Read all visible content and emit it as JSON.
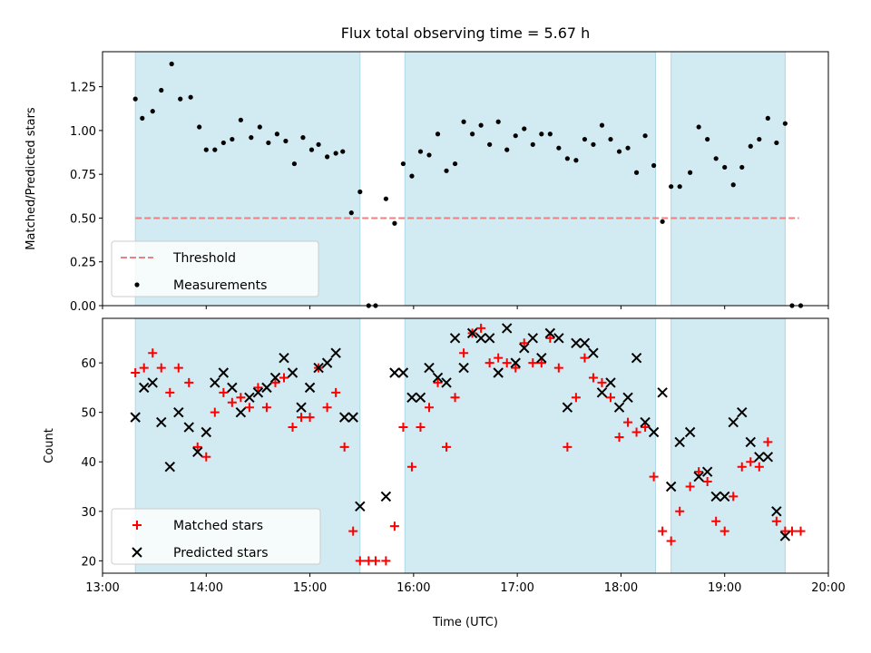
{
  "figure": {
    "title": "Flux total observing time = 5.67 h"
  },
  "colors": {
    "shade": "#add8e6",
    "threshold": "#f08080",
    "measurement": "#000000",
    "matched": "#ff0000",
    "predicted": "#000000"
  },
  "chart_data": [
    {
      "type": "scatter",
      "ylabel": "Matched/Predicted stars",
      "ylim": [
        0,
        1.45
      ],
      "xlim": [
        "13:00",
        "20:00"
      ],
      "yticks": [
        "0.00",
        "0.25",
        "0.50",
        "0.75",
        "1.00",
        "1.25"
      ],
      "grid": false,
      "legend_position": "lower left",
      "shaded_intervals": [
        [
          "13:19",
          "15:29"
        ],
        [
          "15:55",
          "18:20"
        ],
        [
          "18:29",
          "19:35"
        ]
      ],
      "series": [
        {
          "name": "Threshold",
          "style": "dashed-line",
          "x": [
            "13:19",
            "19:43"
          ],
          "y": [
            0.5,
            0.5
          ]
        },
        {
          "name": "Measurements",
          "style": "dot",
          "points": [
            [
              "13:19",
              1.18
            ],
            [
              "13:23",
              1.07
            ],
            [
              "13:29",
              1.11
            ],
            [
              "13:34",
              1.23
            ],
            [
              "13:40",
              1.38
            ],
            [
              "13:45",
              1.18
            ],
            [
              "13:51",
              1.19
            ],
            [
              "13:56",
              1.02
            ],
            [
              "14:00",
              0.89
            ],
            [
              "14:05",
              0.89
            ],
            [
              "14:10",
              0.93
            ],
            [
              "14:15",
              0.95
            ],
            [
              "14:20",
              1.06
            ],
            [
              "14:26",
              0.96
            ],
            [
              "14:31",
              1.02
            ],
            [
              "14:36",
              0.93
            ],
            [
              "14:41",
              0.98
            ],
            [
              "14:46",
              0.94
            ],
            [
              "14:51",
              0.81
            ],
            [
              "14:56",
              0.96
            ],
            [
              "15:01",
              0.89
            ],
            [
              "15:05",
              0.92
            ],
            [
              "15:10",
              0.85
            ],
            [
              "15:15",
              0.87
            ],
            [
              "15:19",
              0.88
            ],
            [
              "15:24",
              0.53
            ],
            [
              "15:29",
              0.65
            ],
            [
              "15:34",
              0.0
            ],
            [
              "15:38",
              0.0
            ],
            [
              "15:44",
              0.61
            ],
            [
              "15:49",
              0.47
            ],
            [
              "15:54",
              0.81
            ],
            [
              "15:59",
              0.74
            ],
            [
              "16:04",
              0.88
            ],
            [
              "16:09",
              0.86
            ],
            [
              "16:14",
              0.98
            ],
            [
              "16:19",
              0.77
            ],
            [
              "16:24",
              0.81
            ],
            [
              "16:29",
              1.05
            ],
            [
              "16:34",
              0.98
            ],
            [
              "16:39",
              1.03
            ],
            [
              "16:44",
              0.92
            ],
            [
              "16:49",
              1.05
            ],
            [
              "16:54",
              0.89
            ],
            [
              "16:59",
              0.97
            ],
            [
              "17:04",
              1.01
            ],
            [
              "17:09",
              0.92
            ],
            [
              "17:14",
              0.98
            ],
            [
              "17:19",
              0.98
            ],
            [
              "17:24",
              0.9
            ],
            [
              "17:29",
              0.84
            ],
            [
              "17:34",
              0.83
            ],
            [
              "17:39",
              0.95
            ],
            [
              "17:44",
              0.92
            ],
            [
              "17:49",
              1.03
            ],
            [
              "17:54",
              0.95
            ],
            [
              "17:59",
              0.88
            ],
            [
              "18:04",
              0.9
            ],
            [
              "18:09",
              0.76
            ],
            [
              "18:14",
              0.97
            ],
            [
              "18:19",
              0.8
            ],
            [
              "18:24",
              0.48
            ],
            [
              "18:29",
              0.68
            ],
            [
              "18:34",
              0.68
            ],
            [
              "18:40",
              0.76
            ],
            [
              "18:45",
              1.02
            ],
            [
              "18:50",
              0.95
            ],
            [
              "18:55",
              0.84
            ],
            [
              "19:00",
              0.79
            ],
            [
              "19:05",
              0.69
            ],
            [
              "19:10",
              0.79
            ],
            [
              "19:15",
              0.91
            ],
            [
              "19:20",
              0.95
            ],
            [
              "19:25",
              1.07
            ],
            [
              "19:30",
              0.93
            ],
            [
              "19:35",
              1.04
            ],
            [
              "19:39",
              0.0
            ],
            [
              "19:44",
              0.0
            ]
          ]
        }
      ]
    },
    {
      "type": "scatter",
      "ylabel": "Count",
      "xlabel": "Time (UTC)",
      "ylim": [
        17.5,
        69
      ],
      "xlim": [
        "13:00",
        "20:00"
      ],
      "yticks": [
        "20",
        "30",
        "40",
        "50",
        "60"
      ],
      "xticks": [
        "13:00",
        "14:00",
        "15:00",
        "16:00",
        "17:00",
        "18:00",
        "19:00",
        "20:00"
      ],
      "grid": false,
      "legend_position": "lower left",
      "shaded_intervals": [
        [
          "13:19",
          "15:29"
        ],
        [
          "15:55",
          "18:20"
        ],
        [
          "18:29",
          "19:35"
        ]
      ],
      "series": [
        {
          "name": "Matched stars",
          "marker": "+",
          "points": [
            [
              "13:19",
              58
            ],
            [
              "13:24",
              59
            ],
            [
              "13:29",
              62
            ],
            [
              "13:34",
              59
            ],
            [
              "13:39",
              54
            ],
            [
              "13:44",
              59
            ],
            [
              "13:50",
              56
            ],
            [
              "13:55",
              43
            ],
            [
              "14:00",
              41
            ],
            [
              "14:05",
              50
            ],
            [
              "14:10",
              54
            ],
            [
              "14:15",
              52
            ],
            [
              "14:20",
              53
            ],
            [
              "14:25",
              51
            ],
            [
              "14:30",
              55
            ],
            [
              "14:35",
              51
            ],
            [
              "14:40",
              56
            ],
            [
              "14:45",
              57
            ],
            [
              "14:50",
              47
            ],
            [
              "14:55",
              49
            ],
            [
              "15:00",
              49
            ],
            [
              "15:05",
              59
            ],
            [
              "15:10",
              51
            ],
            [
              "15:15",
              54
            ],
            [
              "15:20",
              43
            ],
            [
              "15:25",
              26
            ],
            [
              "15:29",
              20
            ],
            [
              "15:34",
              20
            ],
            [
              "15:38",
              20
            ],
            [
              "15:44",
              20
            ],
            [
              "15:49",
              27
            ],
            [
              "15:54",
              47
            ],
            [
              "15:59",
              39
            ],
            [
              "16:04",
              47
            ],
            [
              "16:09",
              51
            ],
            [
              "16:14",
              56
            ],
            [
              "16:19",
              43
            ],
            [
              "16:24",
              53
            ],
            [
              "16:29",
              62
            ],
            [
              "16:34",
              66
            ],
            [
              "16:39",
              67
            ],
            [
              "16:44",
              60
            ],
            [
              "16:49",
              61
            ],
            [
              "16:54",
              60
            ],
            [
              "16:59",
              59
            ],
            [
              "17:04",
              64
            ],
            [
              "17:09",
              60
            ],
            [
              "17:14",
              60
            ],
            [
              "17:19",
              65
            ],
            [
              "17:24",
              59
            ],
            [
              "17:29",
              43
            ],
            [
              "17:34",
              53
            ],
            [
              "17:39",
              61
            ],
            [
              "17:44",
              57
            ],
            [
              "17:49",
              56
            ],
            [
              "17:54",
              53
            ],
            [
              "17:59",
              45
            ],
            [
              "18:04",
              48
            ],
            [
              "18:09",
              46
            ],
            [
              "18:14",
              47
            ],
            [
              "18:19",
              37
            ],
            [
              "18:24",
              26
            ],
            [
              "18:29",
              24
            ],
            [
              "18:34",
              30
            ],
            [
              "18:40",
              35
            ],
            [
              "18:45",
              38
            ],
            [
              "18:50",
              36
            ],
            [
              "18:55",
              28
            ],
            [
              "19:00",
              26
            ],
            [
              "19:05",
              33
            ],
            [
              "19:10",
              39
            ],
            [
              "19:15",
              40
            ],
            [
              "19:20",
              39
            ],
            [
              "19:25",
              44
            ],
            [
              "19:30",
              28
            ],
            [
              "19:35",
              26
            ],
            [
              "19:39",
              26
            ],
            [
              "19:44",
              26
            ]
          ]
        },
        {
          "name": "Predicted stars",
          "marker": "x",
          "points": [
            [
              "13:19",
              49
            ],
            [
              "13:24",
              55
            ],
            [
              "13:29",
              56
            ],
            [
              "13:34",
              48
            ],
            [
              "13:39",
              39
            ],
            [
              "13:44",
              50
            ],
            [
              "13:50",
              47
            ],
            [
              "13:55",
              42
            ],
            [
              "14:00",
              46
            ],
            [
              "14:05",
              56
            ],
            [
              "14:10",
              58
            ],
            [
              "14:15",
              55
            ],
            [
              "14:20",
              50
            ],
            [
              "14:25",
              53
            ],
            [
              "14:30",
              54
            ],
            [
              "14:35",
              55
            ],
            [
              "14:40",
              57
            ],
            [
              "14:45",
              61
            ],
            [
              "14:50",
              58
            ],
            [
              "14:55",
              51
            ],
            [
              "15:00",
              55
            ],
            [
              "15:05",
              59
            ],
            [
              "15:10",
              60
            ],
            [
              "15:15",
              62
            ],
            [
              "15:20",
              49
            ],
            [
              "15:25",
              49
            ],
            [
              "15:29",
              31
            ],
            [
              "15:44",
              33
            ],
            [
              "15:49",
              58
            ],
            [
              "15:54",
              58
            ],
            [
              "15:59",
              53
            ],
            [
              "16:04",
              53
            ],
            [
              "16:09",
              59
            ],
            [
              "16:14",
              57
            ],
            [
              "16:19",
              56
            ],
            [
              "16:24",
              65
            ],
            [
              "16:29",
              59
            ],
            [
              "16:34",
              66
            ],
            [
              "16:39",
              65
            ],
            [
              "16:44",
              65
            ],
            [
              "16:49",
              58
            ],
            [
              "16:54",
              67
            ],
            [
              "16:59",
              60
            ],
            [
              "17:04",
              63
            ],
            [
              "17:09",
              65
            ],
            [
              "17:14",
              61
            ],
            [
              "17:19",
              66
            ],
            [
              "17:24",
              65
            ],
            [
              "17:29",
              51
            ],
            [
              "17:34",
              64
            ],
            [
              "17:39",
              64
            ],
            [
              "17:44",
              62
            ],
            [
              "17:49",
              54
            ],
            [
              "17:54",
              56
            ],
            [
              "17:59",
              51
            ],
            [
              "18:04",
              53
            ],
            [
              "18:09",
              61
            ],
            [
              "18:14",
              48
            ],
            [
              "18:19",
              46
            ],
            [
              "18:24",
              54
            ],
            [
              "18:29",
              35
            ],
            [
              "18:34",
              44
            ],
            [
              "18:40",
              46
            ],
            [
              "18:45",
              37
            ],
            [
              "18:50",
              38
            ],
            [
              "18:55",
              33
            ],
            [
              "19:00",
              33
            ],
            [
              "19:05",
              48
            ],
            [
              "19:10",
              50
            ],
            [
              "19:15",
              44
            ],
            [
              "19:20",
              41
            ],
            [
              "19:25",
              41
            ],
            [
              "19:30",
              30
            ],
            [
              "19:35",
              25
            ]
          ]
        }
      ]
    }
  ]
}
